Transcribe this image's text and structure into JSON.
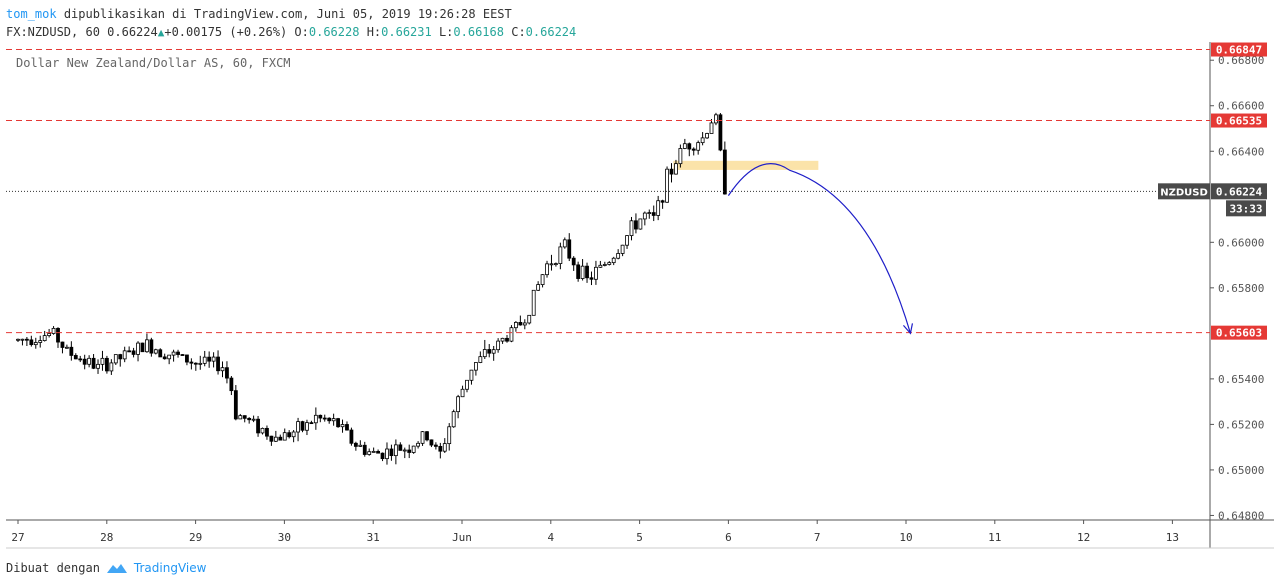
{
  "header": {
    "author": "tom_mok",
    "published_text": "dipublikasikan di TradingView.com, Juni 05, 2019 19:26:28 EEST",
    "symbol_interval": "FX:NZDUSD, 60",
    "last": "0.66224",
    "change": "+0.00175 (+0.26%)",
    "o_label": "O:",
    "o_value": "0.66228",
    "h_label": "H:",
    "h_value": "0.66231",
    "l_label": "L:",
    "l_value": "0.66168",
    "c_label": "C:",
    "c_value": "0.66224"
  },
  "footer": {
    "made_with": "Dibuat dengan",
    "brand": "TradingView"
  },
  "chart_data": {
    "type": "candlestick",
    "title": "Dollar New Zealand/Dollar AS, 60, FXCM",
    "symbol_label": "NZDUSD",
    "last_price": "0.66224",
    "countdown": "33:33",
    "ylim": [
      0.6478,
      0.6688
    ],
    "y_ticks": [
      "0.66800",
      "0.66600",
      "0.66400",
      "0.66000",
      "0.65800",
      "0.65400",
      "0.65200",
      "0.65000",
      "0.64800"
    ],
    "x_ticks": [
      {
        "label": "27",
        "t": 0
      },
      {
        "label": "28",
        "t": 1
      },
      {
        "label": "29",
        "t": 2
      },
      {
        "label": "30",
        "t": 3
      },
      {
        "label": "31",
        "t": 4
      },
      {
        "label": "Jun",
        "t": 5
      },
      {
        "label": "4",
        "t": 6
      },
      {
        "label": "5",
        "t": 7
      },
      {
        "label": "6",
        "t": 8
      },
      {
        "label": "7",
        "t": 9
      },
      {
        "label": "10",
        "t": 10
      },
      {
        "label": "11",
        "t": 11
      },
      {
        "label": "12",
        "t": 12
      },
      {
        "label": "13",
        "t": 13
      }
    ],
    "levels": [
      {
        "price": 0.66847,
        "label": "0.66847",
        "color": "#e53935"
      },
      {
        "price": 0.66535,
        "label": "0.66535",
        "color": "#e53935"
      },
      {
        "price": 0.65603,
        "label": "0.65603",
        "color": "#e53935"
      }
    ],
    "current_line": 0.66224,
    "zone": {
      "t0": 7.38,
      "t1": 8.99,
      "p_low": 0.66318,
      "p_high": 0.66358,
      "color": "#fbe3a9"
    },
    "projection": {
      "t0": 8.0,
      "p0": 0.66205,
      "t_peak": 8.35,
      "p_peak": 0.6633,
      "t1": 10.05,
      "p1": 0.656,
      "color": "#1e1ec8"
    },
    "candle_color": "#000000"
  }
}
